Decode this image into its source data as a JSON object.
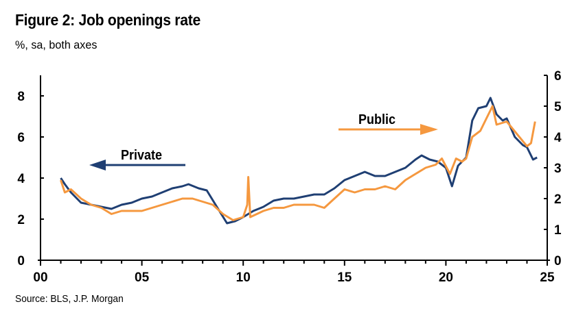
{
  "title": "Figure 2: Job openings rate",
  "subtitle": "%, sa, both axes",
  "source": "Source: BLS, J.P. Morgan",
  "chart_data": {
    "type": "line",
    "title": "Figure 2: Job openings rate",
    "subtitle": "%, sa, both axes",
    "xlim": [
      2000,
      2025
    ],
    "x_ticks": [
      2000,
      2005,
      2010,
      2015,
      2020,
      2025
    ],
    "x_tick_labels": [
      "00",
      "05",
      "10",
      "15",
      "20",
      "25"
    ],
    "y_left": {
      "ylim": [
        0,
        8.9
      ],
      "ticks": [
        0,
        2,
        4,
        6,
        8
      ],
      "tick_labels": [
        "0",
        "2",
        "4",
        "6",
        "8"
      ]
    },
    "y_right": {
      "ylim": [
        0,
        6
      ],
      "ticks": [
        0,
        1,
        2,
        3,
        4,
        5,
        6
      ],
      "tick_labels": [
        "0",
        "1",
        "2",
        "3",
        "4",
        "5",
        "6"
      ]
    },
    "grid": false,
    "series": [
      {
        "name": "Private",
        "axis": "left",
        "color": "#1f3f73",
        "x": [
          2001.0,
          2001.2,
          2001.5,
          2002.0,
          2002.5,
          2003.0,
          2003.5,
          2004.0,
          2004.5,
          2005.0,
          2005.5,
          2006.0,
          2006.5,
          2007.0,
          2007.3,
          2007.8,
          2008.2,
          2008.7,
          2009.2,
          2009.6,
          2010.0,
          2010.5,
          2011.0,
          2011.5,
          2012.0,
          2012.5,
          2013.0,
          2013.5,
          2014.0,
          2014.5,
          2015.0,
          2015.5,
          2016.0,
          2016.5,
          2017.0,
          2017.5,
          2018.0,
          2018.5,
          2018.8,
          2019.2,
          2019.6,
          2020.0,
          2020.3,
          2020.6,
          2021.0,
          2021.3,
          2021.6,
          2022.0,
          2022.2,
          2022.5,
          2022.8,
          2023.0,
          2023.4,
          2023.8,
          2024.0,
          2024.3,
          2024.5
        ],
        "values": [
          4.0,
          3.7,
          3.3,
          2.8,
          2.7,
          2.6,
          2.5,
          2.7,
          2.8,
          3.0,
          3.1,
          3.3,
          3.5,
          3.6,
          3.7,
          3.5,
          3.4,
          2.6,
          1.8,
          1.9,
          2.1,
          2.4,
          2.6,
          2.9,
          3.0,
          3.0,
          3.1,
          3.2,
          3.2,
          3.5,
          3.9,
          4.1,
          4.3,
          4.1,
          4.1,
          4.3,
          4.5,
          4.9,
          5.1,
          4.9,
          4.8,
          4.5,
          3.6,
          4.6,
          5.0,
          6.8,
          7.4,
          7.5,
          7.9,
          7.1,
          6.8,
          6.9,
          6.0,
          5.6,
          5.5,
          4.9,
          5.0
        ]
      },
      {
        "name": "Public",
        "axis": "right",
        "color": "#f5983f",
        "x": [
          2001.0,
          2001.2,
          2001.5,
          2002.0,
          2002.5,
          2003.0,
          2003.5,
          2004.0,
          2004.5,
          2005.0,
          2005.5,
          2006.0,
          2006.5,
          2007.0,
          2007.5,
          2008.0,
          2008.5,
          2009.0,
          2009.5,
          2010.0,
          2010.2,
          2010.25,
          2010.35,
          2011.0,
          2011.5,
          2012.0,
          2012.5,
          2013.0,
          2013.5,
          2014.0,
          2014.5,
          2015.0,
          2015.5,
          2016.0,
          2016.5,
          2017.0,
          2017.5,
          2018.0,
          2018.5,
          2019.0,
          2019.5,
          2019.8,
          2020.2,
          2020.5,
          2020.8,
          2021.0,
          2021.3,
          2021.7,
          2022.0,
          2022.3,
          2022.5,
          2023.0,
          2023.5,
          2024.0,
          2024.2,
          2024.4
        ],
        "values": [
          2.6,
          2.2,
          2.3,
          2.0,
          1.8,
          1.7,
          1.5,
          1.6,
          1.6,
          1.6,
          1.7,
          1.8,
          1.9,
          2.0,
          2.0,
          1.9,
          1.8,
          1.5,
          1.3,
          1.4,
          1.8,
          2.7,
          1.4,
          1.6,
          1.7,
          1.7,
          1.8,
          1.8,
          1.8,
          1.7,
          2.0,
          2.3,
          2.2,
          2.3,
          2.3,
          2.4,
          2.3,
          2.6,
          2.8,
          3.0,
          3.1,
          3.3,
          2.8,
          3.3,
          3.2,
          3.3,
          4.0,
          4.2,
          4.6,
          5.0,
          4.4,
          4.5,
          4.1,
          3.7,
          3.8,
          4.5
        ]
      }
    ],
    "annotations": [
      {
        "text": "Private",
        "arrow": "left"
      },
      {
        "text": "Public",
        "arrow": "right"
      }
    ]
  }
}
